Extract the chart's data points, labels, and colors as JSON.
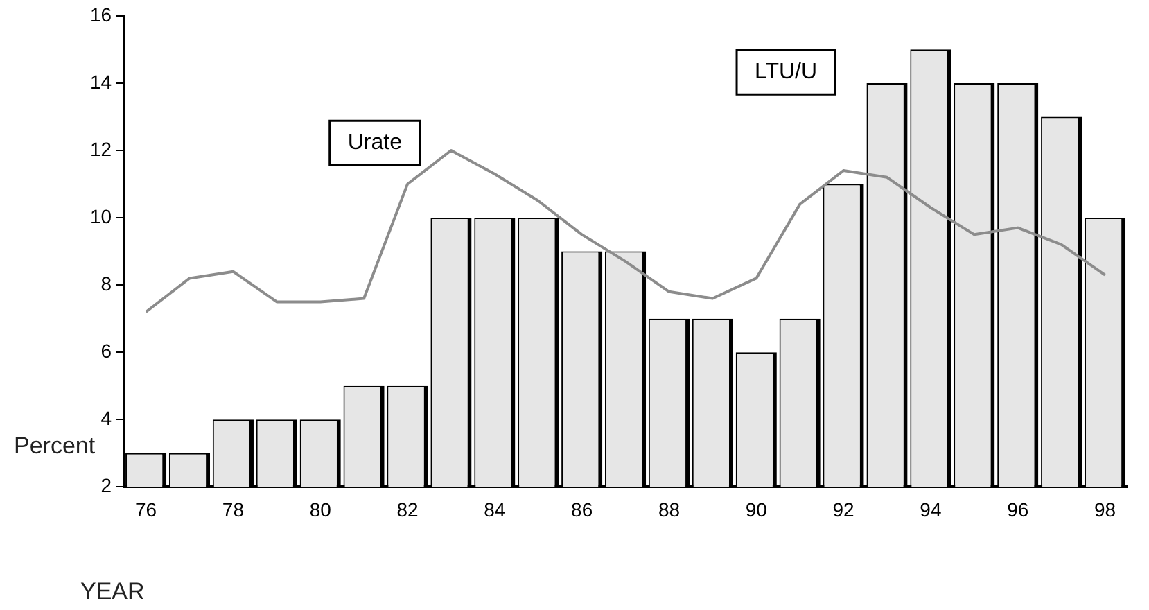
{
  "chart_data": {
    "type": "bar",
    "xlabel": "YEAR",
    "ylabel": "Percent",
    "categories": [
      "76",
      null,
      "78",
      null,
      "80",
      null,
      "82",
      null,
      "84",
      null,
      "86",
      null,
      "88",
      null,
      "90",
      null,
      "92",
      null,
      "94",
      null,
      "96",
      null,
      "98"
    ],
    "series": [
      {
        "name": "LTU/U",
        "color": "#e6e6e6",
        "values": [
          3,
          3,
          4,
          4,
          4,
          5,
          5,
          10,
          10,
          10,
          9,
          9,
          7,
          7,
          6,
          7,
          11,
          14,
          15,
          14,
          14,
          13,
          10
        ]
      },
      {
        "name": "Urate",
        "type": "line",
        "color": "#8c8c8c",
        "values": [
          7.2,
          8.2,
          8.4,
          7.5,
          7.5,
          7.6,
          11,
          12,
          11.3,
          10.5,
          9.5,
          8.7,
          7.8,
          7.6,
          8.2,
          10.4,
          11.4,
          11.2,
          10.3,
          9.5,
          9.7,
          9.2,
          8.3
        ]
      }
    ],
    "ylim": [
      2,
      16
    ],
    "yticks": [
      2,
      4,
      6,
      8,
      10,
      12,
      14,
      16
    ],
    "grid": false,
    "legend": false,
    "marker": "none"
  }
}
